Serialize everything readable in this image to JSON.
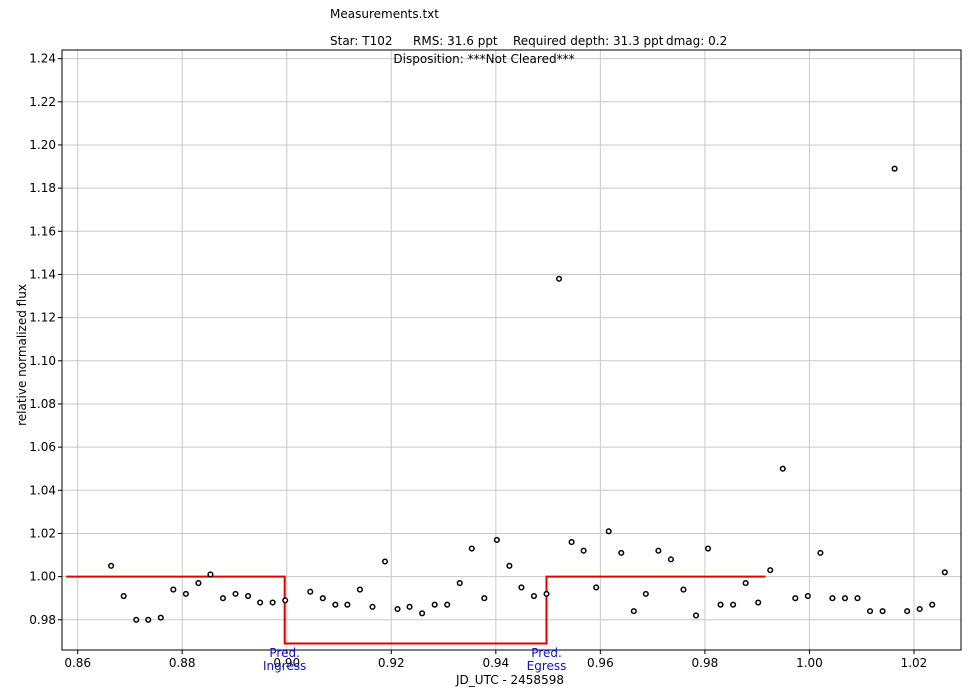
{
  "header": {
    "filename": "Measurements.txt",
    "star": "Star: T102",
    "rms": "RMS: 31.6 ppt",
    "required_depth": "Required depth: 31.3 ppt",
    "dmag": "dmag: 0.2",
    "disposition": "Disposition: ***Not Cleared***"
  },
  "colors": {
    "model": "#e00000",
    "points": "#000000",
    "grid": "#c8c8c8",
    "pred_labels": "#1010d0"
  },
  "chart_data": {
    "type": "scatter",
    "xlabel": "JD_UTC - 2458598",
    "ylabel": "relative normalized flux",
    "xlim": [
      0.857,
      1.029
    ],
    "ylim": [
      0.966,
      1.244
    ],
    "grid": true,
    "x_ticks": [
      0.86,
      0.88,
      0.9,
      0.92,
      0.94,
      0.96,
      0.98,
      1.0,
      1.02
    ],
    "x_tick_labels": [
      "0.86",
      "0.88",
      "0.90",
      "0.92",
      "0.94",
      "0.96",
      "0.98",
      "1.00",
      "1.02"
    ],
    "y_ticks": [
      0.98,
      1.0,
      1.02,
      1.04,
      1.06,
      1.08,
      1.1,
      1.12,
      1.14,
      1.16,
      1.18,
      1.2,
      1.22,
      1.24
    ],
    "y_tick_labels": [
      "0.98",
      "1.00",
      "1.02",
      "1.04",
      "1.06",
      "1.08",
      "1.10",
      "1.12",
      "1.14",
      "1.16",
      "1.18",
      "1.20",
      "1.22",
      "1.24"
    ],
    "series": [
      {
        "type": "scatter",
        "x": [
          0.8664,
          0.8688,
          0.8712,
          0.8735,
          0.8759,
          0.8783,
          0.8807,
          0.8831,
          0.8854,
          0.8878,
          0.8902,
          0.8926,
          0.8949,
          0.8973,
          0.8997,
          0.9045,
          0.9069,
          0.9093,
          0.9116,
          0.914,
          0.9164,
          0.9188,
          0.9212,
          0.9235,
          0.9259,
          0.9283,
          0.9307,
          0.9331,
          0.9354,
          0.9378,
          0.9402,
          0.9426,
          0.9449,
          0.9473,
          0.9497,
          0.9521,
          0.9545,
          0.9568,
          0.9592,
          0.9616,
          0.964,
          0.9664,
          0.9687,
          0.9711,
          0.9735,
          0.9759,
          0.9783,
          0.9806,
          0.983,
          0.9854,
          0.9878,
          0.9902,
          0.9925,
          0.9949,
          0.9973,
          0.9997,
          1.0021,
          1.0044,
          1.0068,
          1.0092,
          1.0116,
          1.014,
          1.0163,
          1.0187,
          1.0211,
          1.0235,
          1.0259
        ],
        "y": [
          1.005,
          0.991,
          0.98,
          0.98,
          0.981,
          0.994,
          0.992,
          0.997,
          1.001,
          0.99,
          0.992,
          0.991,
          0.988,
          0.988,
          0.989,
          0.993,
          0.99,
          0.987,
          0.987,
          0.994,
          0.986,
          1.007,
          0.985,
          0.986,
          0.983,
          0.987,
          0.987,
          0.997,
          1.013,
          0.99,
          1.017,
          1.005,
          0.995,
          0.991,
          0.992,
          1.138,
          1.016,
          1.012,
          0.995,
          1.021,
          1.011,
          0.984,
          0.992,
          1.012,
          1.008,
          0.994,
          0.982,
          1.013,
          0.987,
          0.987,
          0.997,
          0.988,
          1.003,
          1.05,
          0.99,
          0.991,
          1.011,
          0.99,
          0.99,
          0.99,
          0.984,
          0.984,
          1.189,
          0.984,
          0.985,
          0.987,
          1.002
        ]
      },
      {
        "type": "line",
        "x": [
          0.8578,
          0.8996,
          0.8996,
          0.9497,
          0.9497,
          0.9916
        ],
        "y": [
          1.0,
          1.0,
          0.969,
          0.969,
          1.0,
          1.0
        ]
      }
    ],
    "annotations": [
      {
        "text_line1": "Pred.",
        "text_line2": "Ingress",
        "x": 0.8996
      },
      {
        "text_line1": "Pred.",
        "text_line2": "Egress",
        "x": 0.9497
      }
    ]
  }
}
